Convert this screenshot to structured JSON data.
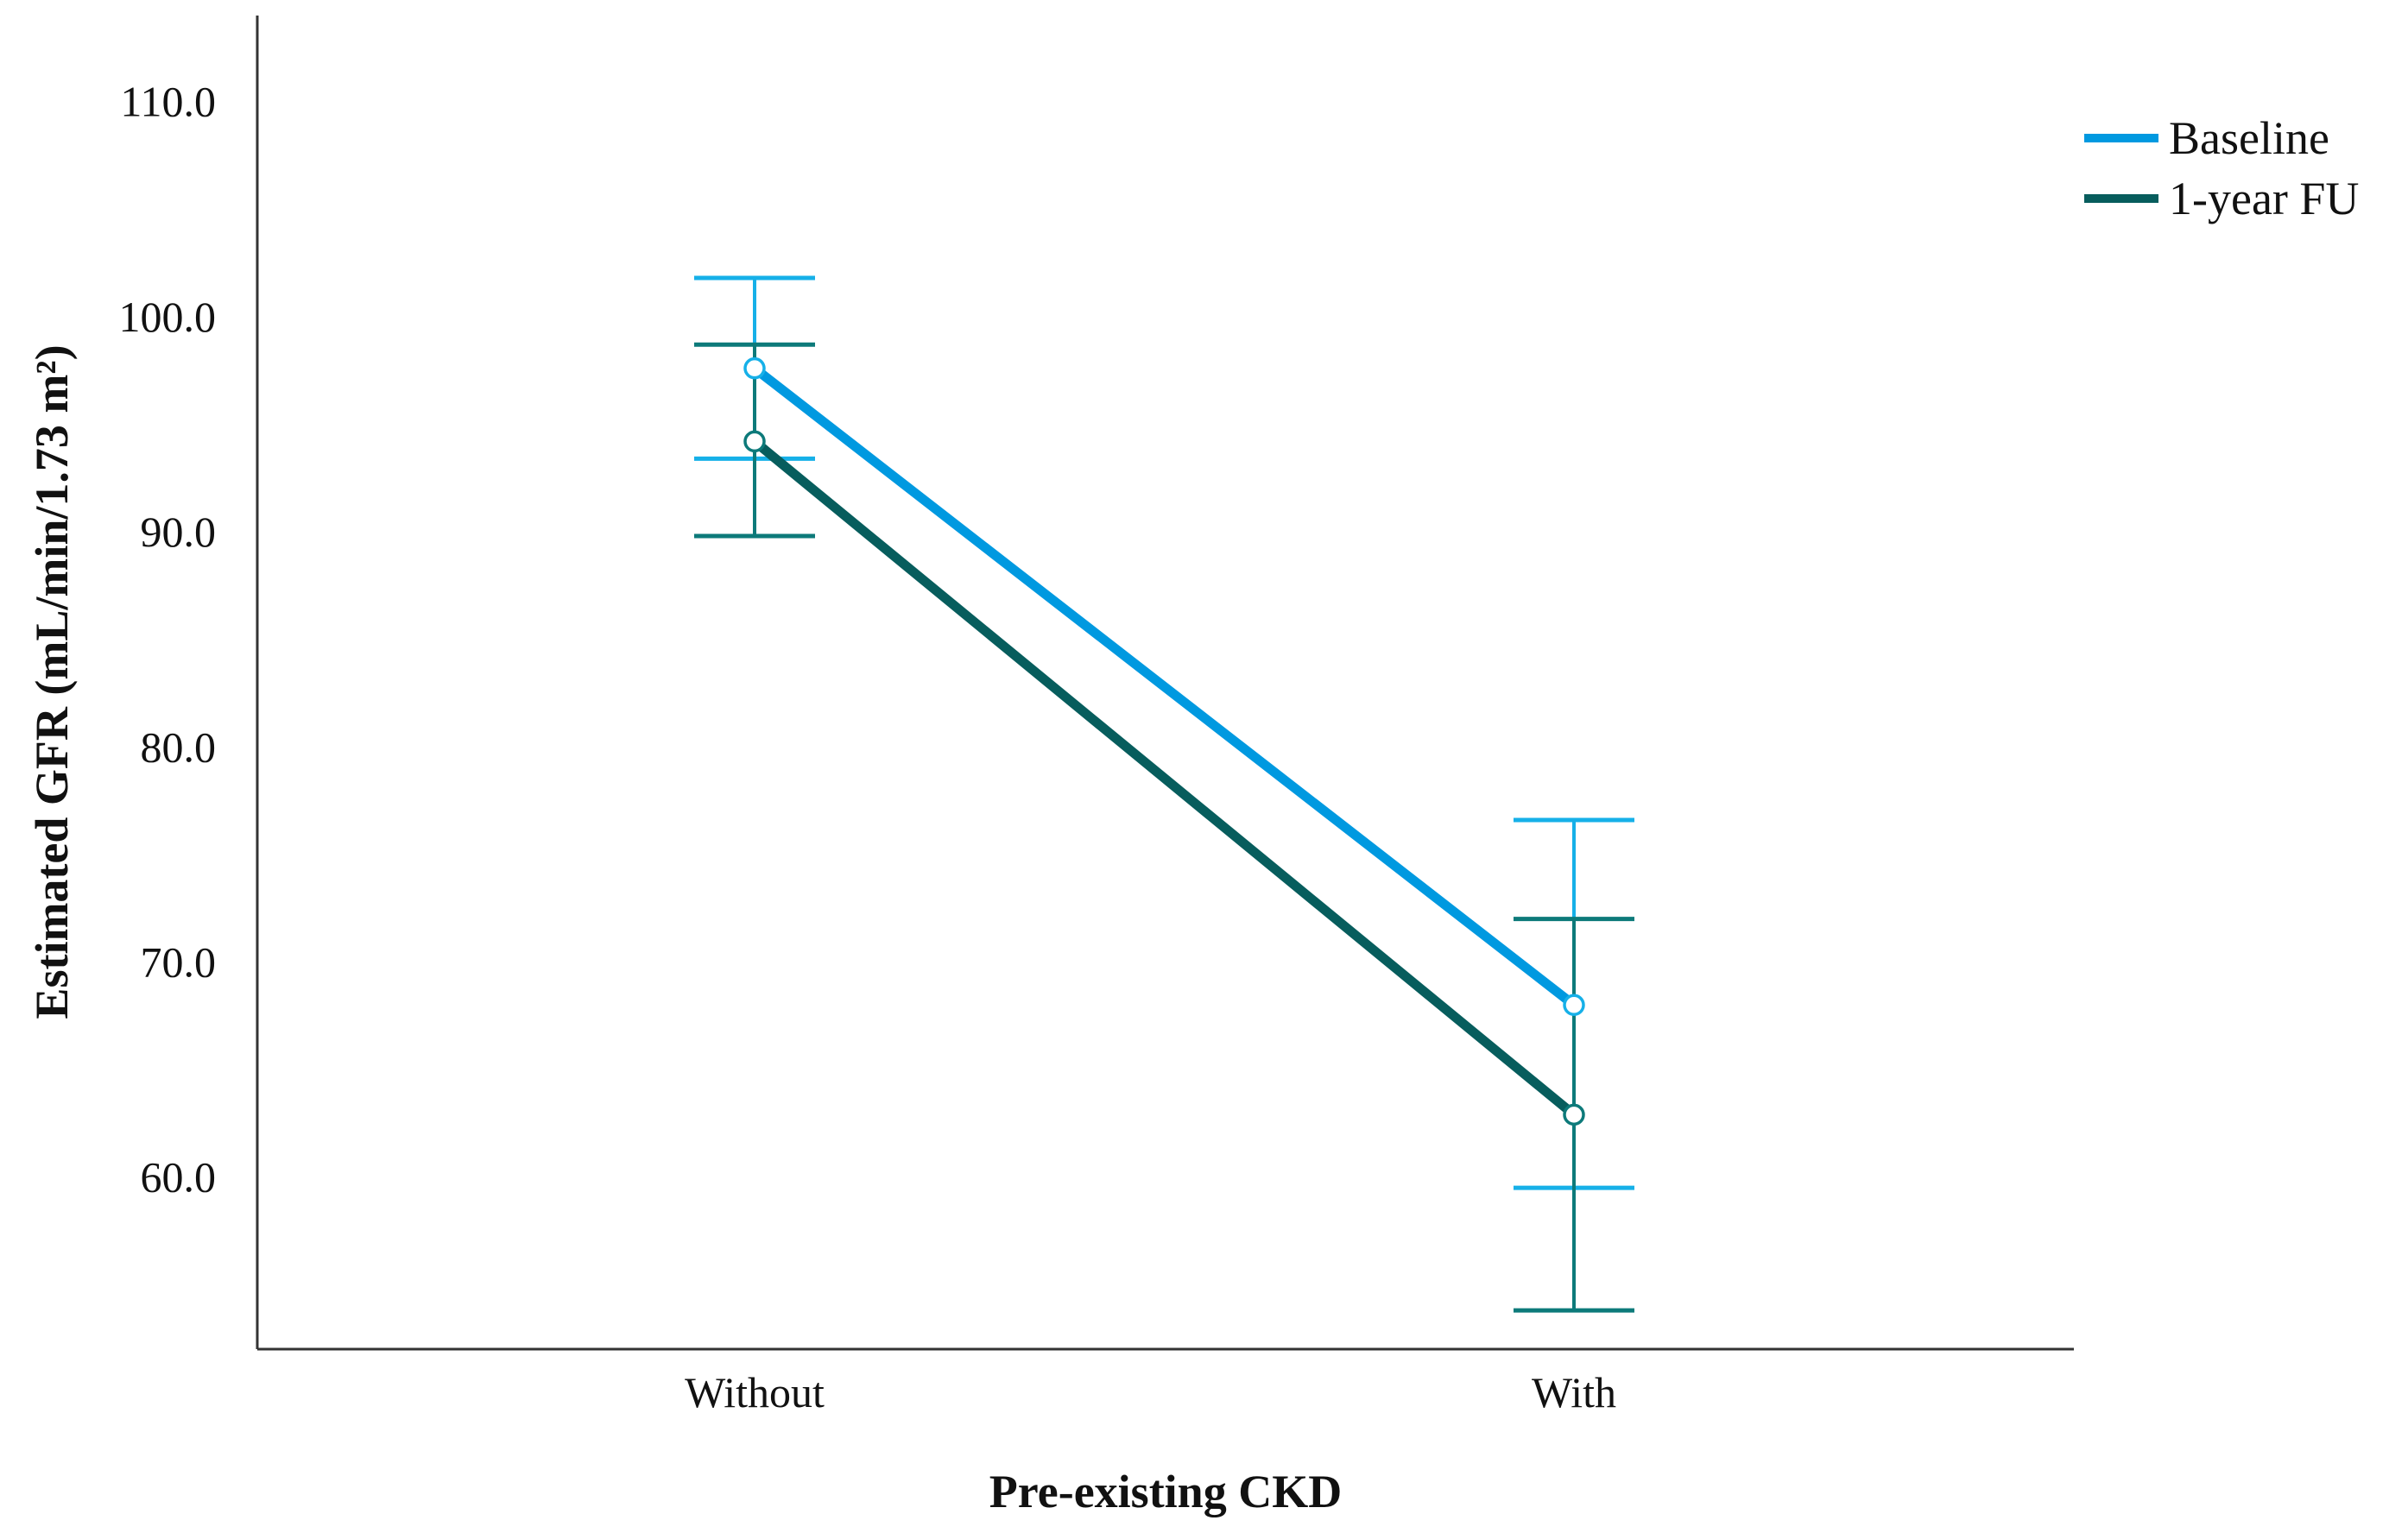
{
  "chart_data": {
    "type": "line",
    "title": "",
    "xlabel": "Pre-existing CKD",
    "ylabel": "Estimated GFR (mL/min/1.73 m²)",
    "categories": [
      "Without",
      "With"
    ],
    "ylim": [
      52.0,
      114.0
    ],
    "yticks": [
      60.0,
      70.0,
      80.0,
      90.0,
      100.0,
      110.0
    ],
    "ytick_labels": [
      "60.0",
      "70.0",
      "80.0",
      "90.0",
      "100.0",
      "110.0"
    ],
    "error_bars": "95% CI",
    "legend_position": "top-right",
    "series": [
      {
        "name": "Baseline",
        "color": "#0099e0",
        "errorbar_color": "#16b0e8",
        "values": [
          97.6,
          68.0
        ],
        "lower": [
          93.4,
          59.5
        ],
        "upper": [
          101.8,
          76.6
        ]
      },
      {
        "name": "1-year FU",
        "color": "#075d5d",
        "errorbar_color": "#0d7a7a",
        "values": [
          94.2,
          62.9
        ],
        "lower": [
          89.8,
          53.8
        ],
        "upper": [
          98.7,
          72.0
        ]
      }
    ]
  }
}
